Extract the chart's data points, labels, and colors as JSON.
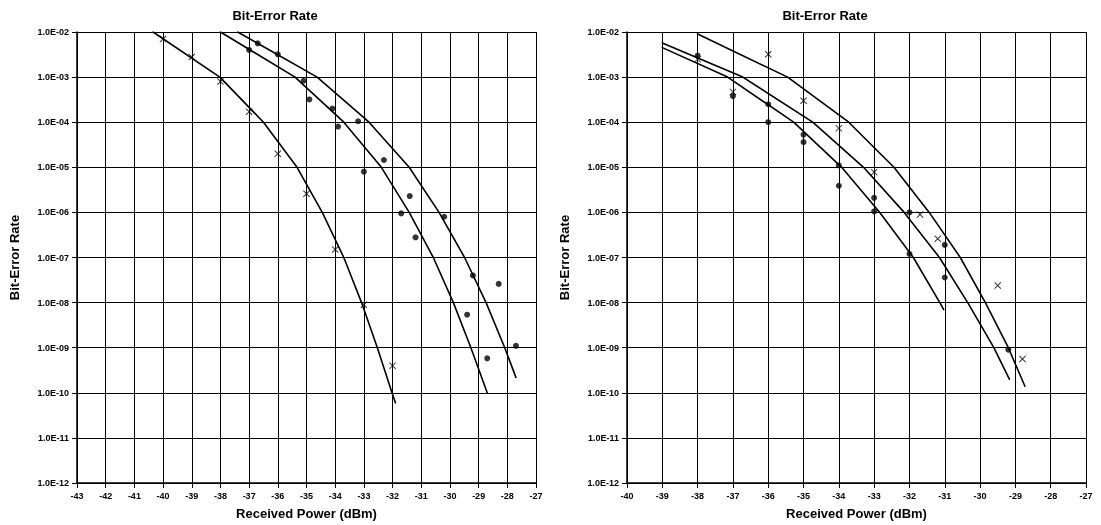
{
  "chart_data": [
    {
      "type": "scatter",
      "title": "Bit-Error Rate",
      "xlabel": "Received Power (dBm)",
      "ylabel": "Bit-Error Rate",
      "log": "y",
      "grid": true,
      "xlim": [
        -43,
        -27
      ],
      "xticks": [
        -43,
        -42,
        -41,
        -40,
        -39,
        -38,
        -37,
        -36,
        -35,
        -34,
        -33,
        -32,
        -31,
        -30,
        -29,
        -28,
        -27
      ],
      "ylim": [
        1e-12,
        0.01
      ],
      "yticks": [
        {
          "value": 1e-12,
          "label": "1.0E-12"
        },
        {
          "value": 1e-11,
          "label": "1.0E-11"
        },
        {
          "value": 1e-10,
          "label": "1.0E-10"
        },
        {
          "value": 1e-09,
          "label": "1.0E-09"
        },
        {
          "value": 1e-08,
          "label": "1.0E-08"
        },
        {
          "value": 1e-07,
          "label": "1.0E-07"
        },
        {
          "value": 1e-06,
          "label": "1.0E-06"
        },
        {
          "value": 1e-05,
          "label": "1.0E-05"
        },
        {
          "value": 0.0001,
          "label": "1.0E-04"
        },
        {
          "value": 0.001,
          "label": "1.0E-03"
        },
        {
          "value": 0.01,
          "label": "1.0E-02"
        }
      ],
      "series": [
        {
          "marker": "cross",
          "color": "#000000",
          "x": [
            -40,
            -39,
            -38,
            -37,
            -36,
            -35,
            -34,
            -33,
            -32
          ],
          "values": [
            0.007,
            0.0028,
            0.0008,
            0.00017,
            2e-05,
            2.6e-06,
            1.5e-07,
            9e-09,
            4e-10
          ]
        },
        {
          "marker": "circle",
          "color": "#000000",
          "x": [
            -37,
            -36,
            -34.9,
            -33.9,
            -33,
            -31.7,
            -31.2,
            -29.2,
            -29.4,
            -28.7
          ],
          "values": [
            0.004,
            0.0032,
            0.00032,
            8e-05,
            8e-06,
            9.5e-07,
            2.8e-07,
            4e-08,
            5.4e-09,
            5.8e-10
          ]
        },
        {
          "marker": "circle",
          "color": "#000000",
          "x": [
            -36.7,
            -35.1,
            -34.1,
            -33.2,
            -32.3,
            -31.4,
            -30.2,
            -28.3,
            -27.7
          ],
          "values": [
            0.0056,
            0.00083,
            0.0002,
            0.000105,
            1.45e-05,
            2.3e-06,
            8e-07,
            2.6e-08,
            1.1e-09
          ]
        },
        {
          "type": "line",
          "marker": "none",
          "color": "#000000",
          "x": [
            -40.35,
            -38.02,
            -36.5,
            -35.33,
            -34.45,
            -33.7,
            -33.08,
            -32.53,
            -32.02,
            -31.9
          ],
          "values": [
            0.01,
            0.001,
            0.0001,
            1e-05,
            1e-06,
            1e-07,
            1e-08,
            1e-09,
            1e-10,
            6e-11
          ]
        },
        {
          "type": "line",
          "marker": "none",
          "color": "#000000",
          "x": [
            -38,
            -35.4,
            -33.7,
            -32.39,
            -31.42,
            -30.58,
            -29.88,
            -29.27,
            -28.7
          ],
          "values": [
            0.01,
            0.001,
            0.0001,
            1e-05,
            1e-06,
            1e-07,
            1e-08,
            1e-09,
            1e-10
          ]
        },
        {
          "type": "line",
          "marker": "none",
          "color": "#000000",
          "x": [
            -37.4,
            -34.63,
            -32.82,
            -31.42,
            -30.38,
            -29.49,
            -28.74,
            -28.09,
            -27.7
          ],
          "values": [
            0.01,
            0.001,
            0.0001,
            1e-05,
            1e-06,
            1e-07,
            1e-08,
            1e-09,
            2.2e-10
          ]
        }
      ]
    },
    {
      "type": "scatter",
      "title": "Bit-Error Rate",
      "xlabel": "Received Power (dBm)",
      "ylabel": "Bit-Error Rate",
      "log": "y",
      "grid": true,
      "xlim": [
        -40,
        -27
      ],
      "xticks": [
        -40,
        -39,
        -38,
        -37,
        -36,
        -35,
        -34,
        -33,
        -32,
        -31,
        -30,
        -29,
        -28,
        -27
      ],
      "ylim": [
        1e-12,
        0.01
      ],
      "yticks": [
        {
          "value": 1e-12,
          "label": "1.0E-12"
        },
        {
          "value": 1e-11,
          "label": "1.0E-11"
        },
        {
          "value": 1e-10,
          "label": "1.0E-10"
        },
        {
          "value": 1e-09,
          "label": "1.0E-09"
        },
        {
          "value": 1e-08,
          "label": "1.0E-08"
        },
        {
          "value": 1e-07,
          "label": "1.0E-07"
        },
        {
          "value": 1e-06,
          "label": "1.0E-06"
        },
        {
          "value": 1e-05,
          "label": "1.0E-05"
        },
        {
          "value": 0.0001,
          "label": "1.0E-04"
        },
        {
          "value": 0.001,
          "label": "1.0E-03"
        },
        {
          "value": 0.01,
          "label": "1.0E-02"
        }
      ],
      "series": [
        {
          "marker": "cross",
          "color": "#000000",
          "x": [
            -38,
            -37,
            -36,
            -35,
            -34,
            -33,
            -31.7,
            -31.2,
            -29.5,
            -28.8
          ],
          "values": [
            0.0025,
            0.00047,
            0.0032,
            0.0003,
            7.3e-05,
            7.8e-06,
            9e-07,
            2.6e-07,
            2.4e-08,
            5.6e-10
          ]
        },
        {
          "marker": "circle",
          "color": "#000000",
          "x": [
            -38,
            -37,
            -36,
            -36,
            -35,
            -35,
            -34,
            -34,
            -33,
            -33,
            -32,
            -32,
            -31,
            -29.2
          ],
          "values": [
            0.003,
            0.00038,
            0.00025,
            0.0001,
            5.3e-05,
            3.6e-05,
            1.1e-05,
            3.9e-06,
            2.1e-06,
            1.05e-06,
            1e-06,
            1.2e-07,
            1.9e-07,
            9e-10
          ]
        },
        {
          "marker": "circle",
          "color": "#000000",
          "x": [
            -31
          ],
          "values": [
            3.6e-08
          ]
        },
        {
          "type": "line",
          "marker": "none",
          "color": "#000000",
          "x": [
            -38,
            -35.45,
            -33.72,
            -32.44,
            -31.44,
            -30.56,
            -29.85,
            -29.2,
            -28.73
          ],
          "values": [
            0.009,
            0.001,
            0.0001,
            1e-05,
            1e-06,
            1e-07,
            1e-08,
            1e-09,
            1.4e-10
          ]
        },
        {
          "type": "line",
          "marker": "none",
          "color": "#000000",
          "x": [
            -39,
            -36.72,
            -34.74,
            -33.3,
            -32.15,
            -31.15,
            -30.35,
            -29.61,
            -29.17
          ],
          "values": [
            0.0057,
            0.001,
            0.0001,
            1e-05,
            1e-06,
            1e-07,
            1e-08,
            1e-09,
            2e-10
          ]
        },
        {
          "type": "line",
          "marker": "none",
          "color": "#000000",
          "x": [
            -39,
            -37.15,
            -35.28,
            -33.92,
            -32.84,
            -31.89,
            -31.14,
            -31.03
          ],
          "values": [
            0.0045,
            0.001,
            0.0001,
            1e-05,
            1e-06,
            1e-07,
            1e-08,
            7e-09
          ]
        }
      ]
    }
  ]
}
